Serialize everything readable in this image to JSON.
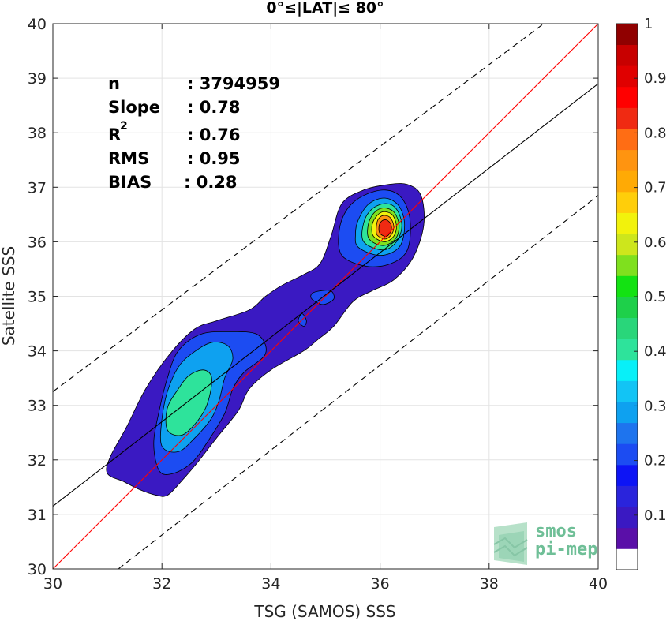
{
  "chart_data": {
    "type": "heatmap",
    "subtype": "density-contour",
    "title": "0°≤|LAT|≤ 80°",
    "xlabel": "TSG (SAMOS) SSS",
    "ylabel": "Satellite SSS",
    "xlim": [
      30,
      40
    ],
    "ylim": [
      30,
      40
    ],
    "xticks": [
      30,
      32,
      34,
      36,
      38,
      40
    ],
    "yticks": [
      30,
      31,
      32,
      33,
      34,
      35,
      36,
      37,
      38,
      39,
      40
    ],
    "grid": true,
    "stats": [
      {
        "label": "n",
        "value": ": 3794959"
      },
      {
        "label": "Slope",
        "value": ": 0.78"
      },
      {
        "label": "R",
        "sup": "2",
        "value": ": 0.76"
      },
      {
        "label": "RMS",
        "value": ": 0.95"
      },
      {
        "label": "BIAS",
        "value": ": 0.28"
      }
    ],
    "lines": [
      {
        "name": "one-to-one",
        "color": "#ff0000",
        "style": "solid",
        "x": [
          30,
          40
        ],
        "y": [
          30,
          40
        ]
      },
      {
        "name": "regression",
        "color": "#000000",
        "style": "solid",
        "x": [
          30,
          40
        ],
        "y": [
          31.15,
          38.9
        ]
      },
      {
        "name": "upper-bound",
        "color": "#000000",
        "style": "dashed",
        "x": [
          30,
          39
        ],
        "y": [
          33.25,
          40
        ]
      },
      {
        "name": "lower-bound",
        "color": "#000000",
        "style": "dashed",
        "x": [
          31.2,
          40
        ],
        "y": [
          30,
          36.85
        ]
      }
    ],
    "contours": [
      {
        "level": 0.05,
        "color": "#3a19c2",
        "points": [
          [
            31.0,
            31.75
          ],
          [
            31.3,
            31.6
          ],
          [
            31.6,
            31.45
          ],
          [
            31.9,
            31.35
          ],
          [
            32.1,
            31.35
          ],
          [
            32.35,
            31.6
          ],
          [
            32.65,
            31.95
          ],
          [
            33.0,
            32.4
          ],
          [
            33.4,
            32.9
          ],
          [
            33.6,
            33.3
          ],
          [
            34.0,
            33.65
          ],
          [
            34.6,
            34.0
          ],
          [
            34.85,
            34.2
          ],
          [
            35.15,
            34.45
          ],
          [
            35.5,
            34.9
          ],
          [
            35.85,
            35.1
          ],
          [
            36.25,
            35.3
          ],
          [
            36.6,
            35.7
          ],
          [
            36.8,
            36.3
          ],
          [
            36.75,
            36.85
          ],
          [
            36.5,
            37.05
          ],
          [
            36.15,
            37.05
          ],
          [
            35.7,
            36.95
          ],
          [
            35.3,
            36.7
          ],
          [
            35.1,
            36.1
          ],
          [
            34.9,
            35.6
          ],
          [
            34.6,
            35.4
          ],
          [
            34.2,
            35.2
          ],
          [
            33.9,
            35.0
          ],
          [
            33.6,
            34.75
          ],
          [
            33.0,
            34.55
          ],
          [
            32.6,
            34.4
          ],
          [
            32.15,
            33.95
          ],
          [
            31.7,
            33.3
          ],
          [
            31.35,
            32.6
          ],
          [
            31.05,
            32.05
          ]
        ]
      },
      {
        "level": 0.15,
        "color": "#1c4cf2",
        "points": [
          [
            31.95,
            31.8
          ],
          [
            32.2,
            31.75
          ],
          [
            32.55,
            31.95
          ],
          [
            32.85,
            32.35
          ],
          [
            33.15,
            32.85
          ],
          [
            33.3,
            33.3
          ],
          [
            33.5,
            33.6
          ],
          [
            33.9,
            33.95
          ],
          [
            33.75,
            34.3
          ],
          [
            33.2,
            34.35
          ],
          [
            32.7,
            34.3
          ],
          [
            32.3,
            34.0
          ],
          [
            32.1,
            33.5
          ],
          [
            31.95,
            32.9
          ],
          [
            31.85,
            32.3
          ]
        ]
      },
      {
        "level": 0.25,
        "color": "#0ea1f0",
        "points": [
          [
            32.0,
            32.25
          ],
          [
            32.3,
            32.15
          ],
          [
            32.6,
            32.4
          ],
          [
            32.9,
            32.75
          ],
          [
            33.05,
            33.1
          ],
          [
            33.15,
            33.5
          ],
          [
            33.3,
            33.85
          ],
          [
            33.2,
            34.1
          ],
          [
            32.9,
            34.15
          ],
          [
            32.55,
            33.95
          ],
          [
            32.3,
            33.7
          ],
          [
            32.1,
            33.25
          ],
          [
            32.0,
            32.75
          ]
        ]
      },
      {
        "level": 0.35,
        "color": "#2ee39b",
        "points": [
          [
            32.1,
            32.55
          ],
          [
            32.35,
            32.45
          ],
          [
            32.6,
            32.65
          ],
          [
            32.8,
            32.95
          ],
          [
            32.9,
            33.3
          ],
          [
            32.9,
            33.55
          ],
          [
            32.75,
            33.65
          ],
          [
            32.5,
            33.55
          ],
          [
            32.3,
            33.3
          ],
          [
            32.1,
            32.95
          ]
        ]
      },
      {
        "level": 0.15,
        "color": "#1c4cf2",
        "points": [
          [
            35.3,
            35.75
          ],
          [
            35.75,
            35.55
          ],
          [
            36.2,
            35.6
          ],
          [
            36.5,
            35.85
          ],
          [
            36.55,
            36.4
          ],
          [
            36.4,
            36.8
          ],
          [
            36.1,
            36.95
          ],
          [
            35.7,
            36.85
          ],
          [
            35.4,
            36.6
          ],
          [
            35.25,
            36.2
          ]
        ]
      },
      {
        "level": 0.25,
        "color": "#0ea1f0",
        "points": [
          [
            35.6,
            35.9
          ],
          [
            36.0,
            35.75
          ],
          [
            36.35,
            35.9
          ],
          [
            36.45,
            36.3
          ],
          [
            36.35,
            36.65
          ],
          [
            36.1,
            36.8
          ],
          [
            35.8,
            36.7
          ],
          [
            35.6,
            36.4
          ],
          [
            35.55,
            36.15
          ]
        ]
      },
      {
        "level": 0.35,
        "color": "#2ee39b",
        "points": [
          [
            35.7,
            36.0
          ],
          [
            36.05,
            35.85
          ],
          [
            36.3,
            36.0
          ],
          [
            36.4,
            36.3
          ],
          [
            36.3,
            36.6
          ],
          [
            36.1,
            36.7
          ],
          [
            35.85,
            36.6
          ],
          [
            35.7,
            36.35
          ]
        ]
      },
      {
        "level": 0.55,
        "color": "#7fe01e",
        "points": [
          [
            35.8,
            36.05
          ],
          [
            36.05,
            35.93
          ],
          [
            36.28,
            36.05
          ],
          [
            36.35,
            36.3
          ],
          [
            36.25,
            36.55
          ],
          [
            36.05,
            36.62
          ],
          [
            35.88,
            36.52
          ],
          [
            35.78,
            36.3
          ]
        ]
      },
      {
        "level": 0.65,
        "color": "#f2f20c",
        "points": [
          [
            35.88,
            36.1
          ],
          [
            36.08,
            36.0
          ],
          [
            36.25,
            36.1
          ],
          [
            36.3,
            36.3
          ],
          [
            36.22,
            36.5
          ],
          [
            36.05,
            36.55
          ],
          [
            35.92,
            36.45
          ],
          [
            35.85,
            36.28
          ]
        ]
      },
      {
        "level": 0.75,
        "color": "#ff9410",
        "points": [
          [
            35.95,
            36.12
          ],
          [
            36.1,
            36.05
          ],
          [
            36.22,
            36.15
          ],
          [
            36.25,
            36.3
          ],
          [
            36.18,
            36.45
          ],
          [
            36.05,
            36.48
          ],
          [
            35.96,
            36.4
          ],
          [
            35.93,
            36.25
          ]
        ]
      },
      {
        "level": 0.85,
        "color": "#f02a12",
        "points": [
          [
            36.0,
            36.15
          ],
          [
            36.12,
            36.1
          ],
          [
            36.2,
            36.2
          ],
          [
            36.2,
            36.32
          ],
          [
            36.12,
            36.4
          ],
          [
            36.03,
            36.38
          ],
          [
            35.98,
            36.28
          ]
        ]
      },
      {
        "level": 0.15,
        "color": "#1c4cf2",
        "points": [
          [
            34.75,
            34.95
          ],
          [
            34.95,
            34.85
          ],
          [
            35.15,
            34.95
          ],
          [
            35.1,
            35.1
          ],
          [
            34.9,
            35.1
          ],
          [
            34.75,
            35.05
          ]
        ]
      },
      {
        "level": 0.15,
        "color": "#1c4cf2",
        "points": [
          [
            34.5,
            34.55
          ],
          [
            34.6,
            34.45
          ],
          [
            34.65,
            34.55
          ],
          [
            34.57,
            34.68
          ]
        ]
      }
    ],
    "colorbar": {
      "range": [
        0,
        1
      ],
      "ticks": [
        0.1,
        0.2,
        0.3,
        0.4,
        0.5,
        0.6,
        0.7,
        0.8,
        0.9,
        1
      ],
      "tick_labels": [
        "0.1",
        "0.2",
        "0.3",
        "0.4",
        "0.5",
        "0.6",
        "0.7",
        "0.8",
        "0.9",
        "1"
      ],
      "colors": [
        "#ffffff",
        "#5a0fa8",
        "#3a19c2",
        "#2a24dc",
        "#0d14f5",
        "#1c4cf2",
        "#1e74ee",
        "#0ea1f0",
        "#12c4f5",
        "#08f0f8",
        "#2ee39b",
        "#29d67a",
        "#1ed04a",
        "#13e212",
        "#7fe01e",
        "#cde61c",
        "#f2f20c",
        "#ffce0a",
        "#ffaa05",
        "#ff9410",
        "#ff6d14",
        "#f02a12",
        "#ff0000",
        "#e00000",
        "#c80000",
        "#900000"
      ]
    },
    "watermark": {
      "line1": "smos",
      "line2": "pi-mep"
    }
  }
}
